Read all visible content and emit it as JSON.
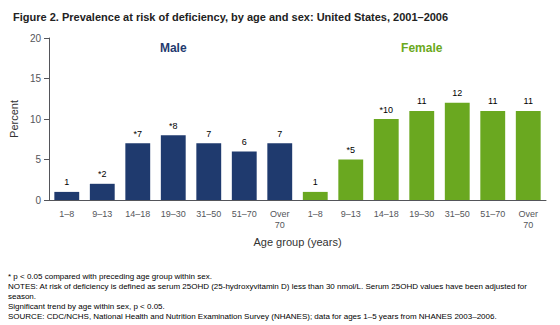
{
  "chart_data": {
    "type": "bar",
    "title": "Figure 2. Prevalence at risk of deficiency, by age and sex: United States, 2001–2006",
    "x_label": "Age group (years)",
    "y_label": "Percent",
    "categories": [
      "1–8",
      "9–13",
      "14–18",
      "19–30",
      "31–50",
      "51–70",
      "Over\n70",
      "1–8",
      "9–13",
      "14–18",
      "19–30",
      "31–50",
      "51–70",
      "Over\n70"
    ],
    "series": [
      {
        "name": "Male",
        "color": "#1F3A6E",
        "values": [
          1,
          2,
          7,
          8,
          7,
          6,
          7,
          null,
          null,
          null,
          null,
          null,
          null,
          null
        ],
        "value_labels": [
          "1",
          "*2",
          "*7",
          "*8",
          "7",
          "6",
          "7",
          null,
          null,
          null,
          null,
          null,
          null,
          null
        ]
      },
      {
        "name": "Female",
        "color": "#6AA820",
        "values": [
          null,
          null,
          null,
          null,
          null,
          null,
          null,
          1,
          5,
          10,
          11,
          12,
          11,
          11
        ],
        "value_labels": [
          null,
          null,
          null,
          null,
          null,
          null,
          null,
          "1",
          "*5",
          "*10",
          "11",
          "12",
          "11",
          "11"
        ]
      }
    ],
    "ylim": [
      0,
      20
    ],
    "yticks": [
      0,
      5,
      10,
      15,
      20
    ],
    "grid": false,
    "data_labels": true,
    "annotations": [
      "* p < 0.05 compared with preceding age group within sex.",
      "NOTES: At risk of deficiency is defined as serum 25OHD (25-hydroxyvitamin D) less than 30 nmol/L. Serum 25OHD values have been adjusted for season.",
      "Significant trend by age within sex, p < 0.05.",
      "SOURCE: CDC/NCHS, National Health and Nutrition Examination Survey (NHANES); data for ages 1–5 years from NHANES 2003–2006."
    ]
  }
}
